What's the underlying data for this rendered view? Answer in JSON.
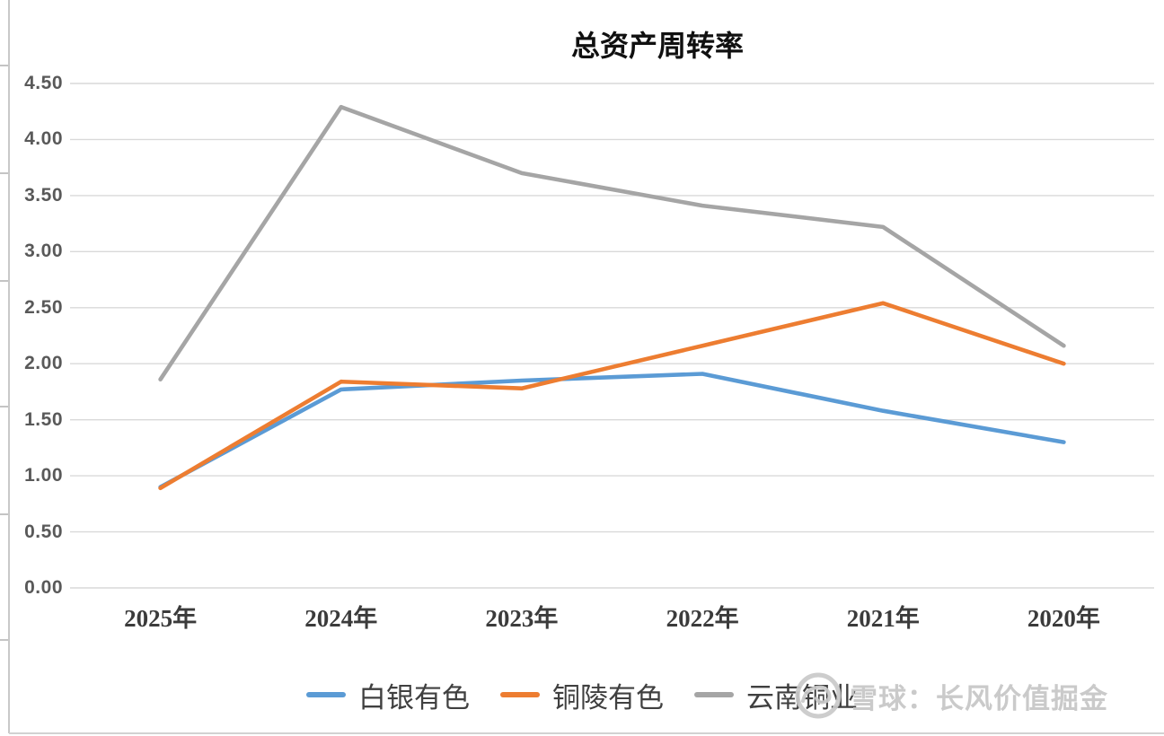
{
  "watermark": {
    "text": "雪球：长风价值掘金",
    "logo": "snowball-logo-icon",
    "color": "#c6c6c6"
  },
  "chart_data": {
    "type": "line",
    "title": "总资产周转率",
    "categories": [
      "2025年",
      "2024年",
      "2023年",
      "2022年",
      "2021年",
      "2020年"
    ],
    "series": [
      {
        "name": "白银有色",
        "color": "#5B9BD5",
        "values": [
          0.9,
          1.77,
          1.85,
          1.91,
          1.58,
          1.3
        ]
      },
      {
        "name": "铜陵有色",
        "color": "#ED7D31",
        "values": [
          0.89,
          1.84,
          1.78,
          2.16,
          2.54,
          2.0
        ]
      },
      {
        "name": "云南铜业",
        "color": "#A5A5A5",
        "values": [
          1.86,
          4.29,
          3.7,
          3.41,
          3.22,
          2.16
        ]
      }
    ],
    "ylim": [
      0,
      4.5
    ],
    "yticks": [
      "4.50",
      "4.00",
      "3.50",
      "3.00",
      "2.50",
      "2.00",
      "1.50",
      "1.00",
      "0.50",
      "0.00"
    ],
    "xlabel": "",
    "ylabel": "",
    "grid": true,
    "legend_position": "bottom",
    "colors": {
      "gridline": "#D9D9D9",
      "axis_text": "#595959",
      "x_axis_text": "#3b3b3b",
      "title_text": "#101010",
      "legend_text": "#404040",
      "background": "#ffffff"
    }
  }
}
